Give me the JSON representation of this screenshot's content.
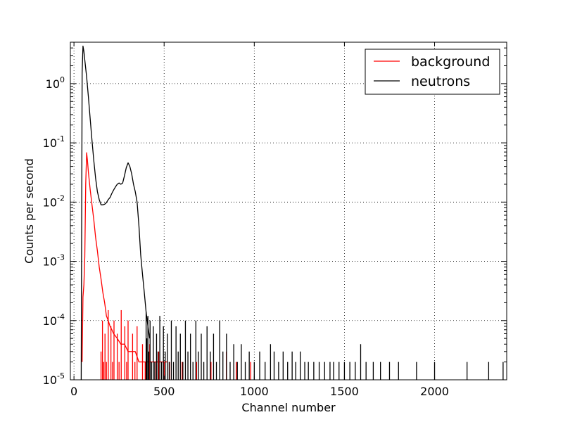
{
  "chart_data": {
    "type": "line",
    "title": "",
    "xlabel": "Channel number",
    "ylabel": "Counts per second",
    "xlim": [
      -20,
      2400
    ],
    "ylim": [
      1e-05,
      5
    ],
    "yscale": "log",
    "grid": true,
    "legend_position": "top-right",
    "x_ticks": [
      {
        "value": 0,
        "label": "0"
      },
      {
        "value": 500,
        "label": "500"
      },
      {
        "value": 1000,
        "label": "1000"
      },
      {
        "value": 1500,
        "label": "1500"
      },
      {
        "value": 2000,
        "label": "2000"
      }
    ],
    "y_ticks": [
      {
        "value": 1e-05,
        "base": "10",
        "exp": "-5"
      },
      {
        "value": 0.0001,
        "base": "10",
        "exp": "-4"
      },
      {
        "value": 0.001,
        "base": "10",
        "exp": "-3"
      },
      {
        "value": 0.01,
        "base": "10",
        "exp": "-2"
      },
      {
        "value": 0.1,
        "base": "10",
        "exp": "-1"
      },
      {
        "value": 1,
        "base": "10",
        "exp": "0"
      }
    ],
    "series": [
      {
        "name": "background",
        "color": "#ff0000",
        "x": [
          45,
          50,
          55,
          60,
          65,
          70,
          75,
          80,
          90,
          100,
          110,
          120,
          130,
          140,
          150,
          160,
          170,
          180,
          190,
          200,
          210,
          220,
          240,
          260,
          280,
          300,
          320,
          340,
          360,
          380,
          400,
          440,
          480,
          520
        ],
        "y": [
          2e-05,
          0.00025,
          0.0004,
          0.0012,
          0.02,
          0.068,
          0.05,
          0.032,
          0.016,
          0.009,
          0.005,
          0.0025,
          0.0015,
          0.0008,
          0.0005,
          0.0003,
          0.0002,
          0.00012,
          0.0001,
          8e-05,
          7e-05,
          6e-05,
          5e-05,
          4e-05,
          4e-05,
          3e-05,
          3e-05,
          3e-05,
          2e-05,
          2e-05,
          2e-05,
          2e-05,
          2e-05,
          2e-05
        ],
        "noise_points": [
          {
            "x": 150,
            "y": 3e-05
          },
          {
            "x": 158,
            "y": 0.0001
          },
          {
            "x": 165,
            "y": 2e-05
          },
          {
            "x": 172,
            "y": 6e-05
          },
          {
            "x": 180,
            "y": 2e-05
          },
          {
            "x": 190,
            "y": 0.00015
          },
          {
            "x": 196,
            "y": 1e-05
          },
          {
            "x": 205,
            "y": 8e-05
          },
          {
            "x": 214,
            "y": 2e-05
          },
          {
            "x": 222,
            "y": 0.0001
          },
          {
            "x": 230,
            "y": 1e-05
          },
          {
            "x": 240,
            "y": 6e-05
          },
          {
            "x": 250,
            "y": 2e-05
          },
          {
            "x": 262,
            "y": 0.00015
          },
          {
            "x": 270,
            "y": 1e-05
          },
          {
            "x": 282,
            "y": 8e-05
          },
          {
            "x": 292,
            "y": 2e-05
          },
          {
            "x": 300,
            "y": 0.0001
          },
          {
            "x": 312,
            "y": 1e-05
          },
          {
            "x": 325,
            "y": 6e-05
          },
          {
            "x": 338,
            "y": 2e-05
          },
          {
            "x": 350,
            "y": 8e-05
          },
          {
            "x": 365,
            "y": 1e-05
          },
          {
            "x": 380,
            "y": 4e-05
          },
          {
            "x": 395,
            "y": 2e-05
          },
          {
            "x": 420,
            "y": 4e-05
          },
          {
            "x": 450,
            "y": 2e-05
          },
          {
            "x": 470,
            "y": 3e-05
          },
          {
            "x": 500,
            "y": 2e-05
          },
          {
            "x": 530,
            "y": 2e-05
          },
          {
            "x": 600,
            "y": 2e-05
          },
          {
            "x": 680,
            "y": 2e-05
          },
          {
            "x": 760,
            "y": 2e-05
          },
          {
            "x": 845,
            "y": 3e-05
          },
          {
            "x": 900,
            "y": 2e-05
          },
          {
            "x": 980,
            "y": 2e-05
          }
        ]
      },
      {
        "name": "neutrons",
        "color": "#000000",
        "x": [
          40,
          45,
          50,
          55,
          60,
          70,
          80,
          90,
          100,
          110,
          120,
          130,
          140,
          150,
          160,
          170,
          180,
          190,
          200,
          210,
          220,
          230,
          240,
          250,
          260,
          270,
          280,
          290,
          300,
          310,
          320,
          330,
          340,
          350,
          360,
          370,
          380,
          390,
          400,
          410,
          420
        ],
        "y": [
          1e-05,
          1.5,
          4.3,
          3.5,
          2.5,
          1.3,
          0.6,
          0.25,
          0.11,
          0.05,
          0.025,
          0.015,
          0.011,
          0.009,
          0.009,
          0.0092,
          0.0098,
          0.011,
          0.012,
          0.014,
          0.016,
          0.018,
          0.02,
          0.021,
          0.02,
          0.021,
          0.028,
          0.038,
          0.046,
          0.04,
          0.03,
          0.02,
          0.015,
          0.01,
          0.004,
          0.0013,
          0.0006,
          0.0003,
          0.00014,
          8e-05,
          5e-05
        ],
        "noise_points": [
          {
            "x": 400,
            "y": 0.00014
          },
          {
            "x": 404,
            "y": 5e-05
          },
          {
            "x": 410,
            "y": 0.00012
          },
          {
            "x": 415,
            "y": 3e-05
          },
          {
            "x": 422,
            "y": 0.0001
          },
          {
            "x": 430,
            "y": 2e-05
          },
          {
            "x": 440,
            "y": 8e-05
          },
          {
            "x": 448,
            "y": 2e-05
          },
          {
            "x": 458,
            "y": 6e-05
          },
          {
            "x": 466,
            "y": 3e-05
          },
          {
            "x": 476,
            "y": 0.00012
          },
          {
            "x": 486,
            "y": 2e-05
          },
          {
            "x": 496,
            "y": 8e-05
          },
          {
            "x": 506,
            "y": 3e-05
          },
          {
            "x": 518,
            "y": 6e-05
          },
          {
            "x": 528,
            "y": 2e-05
          },
          {
            "x": 540,
            "y": 0.0001
          },
          {
            "x": 552,
            "y": 2e-05
          },
          {
            "x": 566,
            "y": 8e-05
          },
          {
            "x": 578,
            "y": 3e-05
          },
          {
            "x": 590,
            "y": 6e-05
          },
          {
            "x": 604,
            "y": 2e-05
          },
          {
            "x": 618,
            "y": 0.0001
          },
          {
            "x": 632,
            "y": 3e-05
          },
          {
            "x": 646,
            "y": 6e-05
          },
          {
            "x": 660,
            "y": 2e-05
          },
          {
            "x": 676,
            "y": 0.0001
          },
          {
            "x": 690,
            "y": 3e-05
          },
          {
            "x": 706,
            "y": 6e-05
          },
          {
            "x": 720,
            "y": 2e-05
          },
          {
            "x": 738,
            "y": 8e-05
          },
          {
            "x": 756,
            "y": 3e-05
          },
          {
            "x": 774,
            "y": 6e-05
          },
          {
            "x": 790,
            "y": 2e-05
          },
          {
            "x": 808,
            "y": 0.0001
          },
          {
            "x": 826,
            "y": 3e-05
          },
          {
            "x": 846,
            "y": 6e-05
          },
          {
            "x": 866,
            "y": 2e-05
          },
          {
            "x": 886,
            "y": 4e-05
          },
          {
            "x": 906,
            "y": 2e-05
          },
          {
            "x": 928,
            "y": 4e-05
          },
          {
            "x": 950,
            "y": 2e-05
          },
          {
            "x": 972,
            "y": 3e-05
          },
          {
            "x": 1000,
            "y": 2e-05
          },
          {
            "x": 1030,
            "y": 3e-05
          },
          {
            "x": 1060,
            "y": 2e-05
          },
          {
            "x": 1090,
            "y": 4e-05
          },
          {
            "x": 1110,
            "y": 3e-05
          },
          {
            "x": 1135,
            "y": 2e-05
          },
          {
            "x": 1160,
            "y": 3e-05
          },
          {
            "x": 1185,
            "y": 2e-05
          },
          {
            "x": 1210,
            "y": 3e-05
          },
          {
            "x": 1230,
            "y": 2e-05
          },
          {
            "x": 1255,
            "y": 3e-05
          },
          {
            "x": 1280,
            "y": 2e-05
          },
          {
            "x": 1300,
            "y": 2e-05
          },
          {
            "x": 1330,
            "y": 2e-05
          },
          {
            "x": 1360,
            "y": 2e-05
          },
          {
            "x": 1390,
            "y": 2e-05
          },
          {
            "x": 1420,
            "y": 2e-05
          },
          {
            "x": 1440,
            "y": 2e-05
          },
          {
            "x": 1470,
            "y": 2e-05
          },
          {
            "x": 1500,
            "y": 2e-05
          },
          {
            "x": 1530,
            "y": 2e-05
          },
          {
            "x": 1560,
            "y": 2e-05
          },
          {
            "x": 1590,
            "y": 4e-05
          },
          {
            "x": 1620,
            "y": 2e-05
          },
          {
            "x": 1660,
            "y": 2e-05
          },
          {
            "x": 1700,
            "y": 2e-05
          },
          {
            "x": 1750,
            "y": 2e-05
          },
          {
            "x": 1800,
            "y": 2e-05
          },
          {
            "x": 1900,
            "y": 2e-05
          },
          {
            "x": 2000,
            "y": 2e-05
          },
          {
            "x": 2180,
            "y": 2e-05
          },
          {
            "x": 2300,
            "y": 2e-05
          },
          {
            "x": 2380,
            "y": 2e-05
          }
        ]
      }
    ]
  }
}
